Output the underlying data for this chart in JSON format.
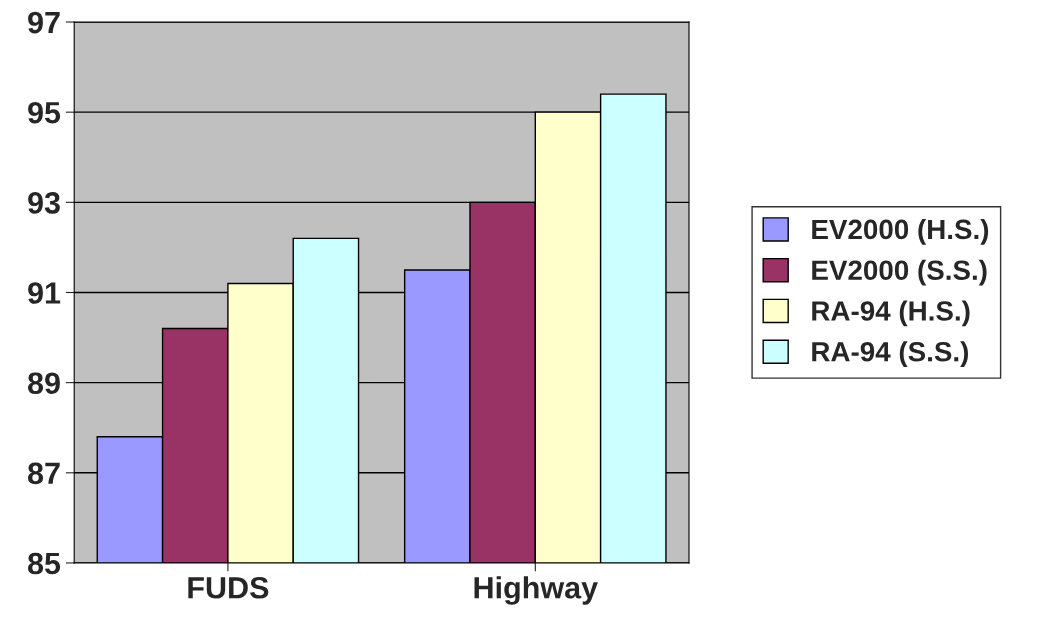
{
  "chart_data": {
    "type": "bar",
    "categories": [
      "FUDS",
      "Highway"
    ],
    "series": [
      {
        "name": "EV2000 (H.S.)",
        "color": "#9999ff",
        "values": [
          87.8,
          91.5
        ]
      },
      {
        "name": "EV2000 (S.S.)",
        "color": "#993366",
        "values": [
          90.2,
          93.0
        ]
      },
      {
        "name": "RA-94 (H.S.)",
        "color": "#ffffcc",
        "values": [
          91.2,
          95.0
        ]
      },
      {
        "name": "RA-94 (S.S.)",
        "color": "#ccffff",
        "values": [
          92.2,
          95.4
        ]
      }
    ],
    "ylim": [
      85,
      97
    ],
    "yticks": [
      85,
      87,
      89,
      91,
      93,
      95,
      97
    ],
    "grid": "y",
    "legend": "right"
  }
}
